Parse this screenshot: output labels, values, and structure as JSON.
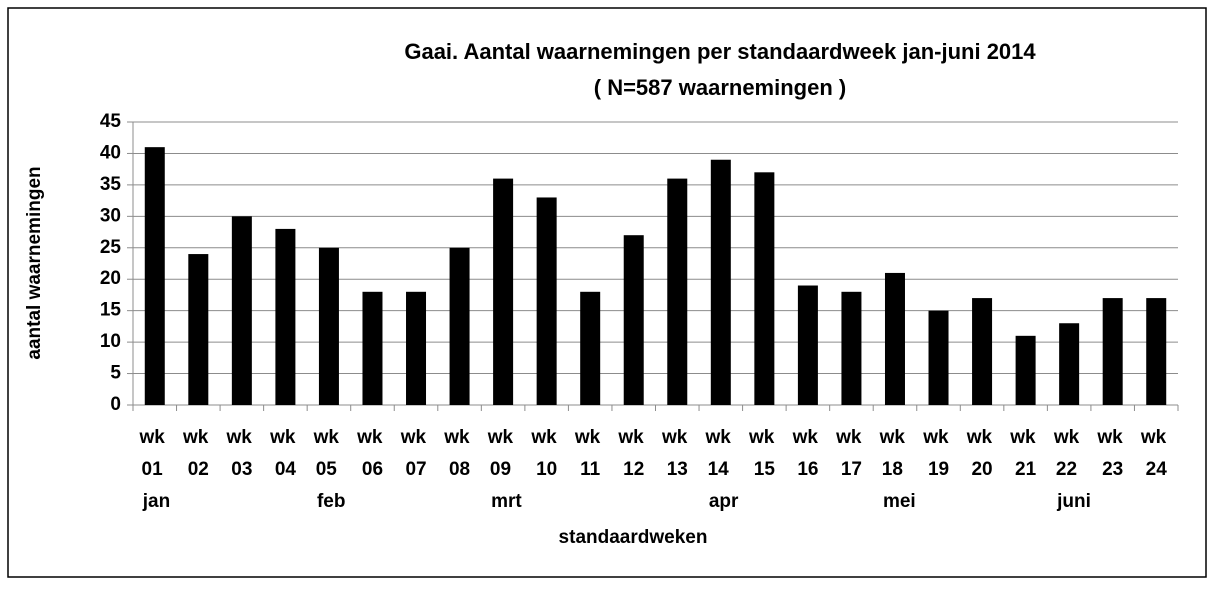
{
  "chart_data": {
    "type": "bar",
    "title": "Gaai. Aantal waarnemingen per standaardweek  jan-juni 2014",
    "subtitle": "( N=587 waarnemingen )",
    "y_label": "aantal waarnemingen",
    "x_label": "standaardweken",
    "categories": [
      "wk 01 jan",
      "wk 02",
      "wk 03",
      "wk 04",
      "wk 05 feb",
      "wk 06",
      "wk 07",
      "wk 08",
      "wk 09 mrt",
      "wk 10",
      "wk 11",
      "wk 12",
      "wk 13",
      "wk 14 apr",
      "wk 15",
      "wk 16",
      "wk 17",
      "wk 18 mei",
      "wk 19",
      "wk 20",
      "wk 21",
      "wk 22 juni",
      "wk 23",
      "wk 24"
    ],
    "values": [
      41,
      24,
      30,
      28,
      25,
      18,
      18,
      25,
      36,
      33,
      18,
      27,
      36,
      39,
      37,
      19,
      18,
      21,
      15,
      17,
      11,
      13,
      17,
      17
    ],
    "color": "#000000",
    "ylim": [
      0,
      45
    ],
    "yticks": [
      0,
      5,
      10,
      15,
      20,
      25,
      30,
      35,
      40,
      45
    ],
    "grid": true
  }
}
